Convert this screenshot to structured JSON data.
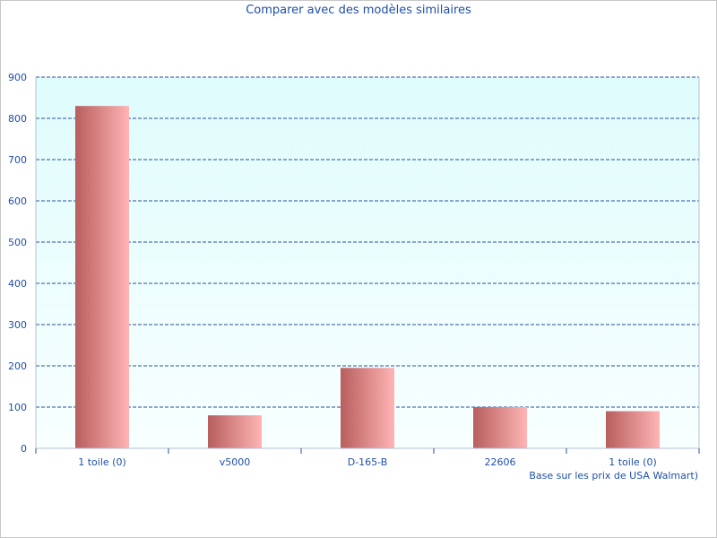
{
  "chart_data": {
    "type": "bar",
    "title": "Comparer avec des modèles similaires",
    "xlabel": "Base sur les prix de USA Walmart)",
    "ylabel": "",
    "categories": [
      "1 toile (0)",
      "v5000",
      "D-165-B",
      "22606",
      "1 toile (0)"
    ],
    "values": [
      830,
      80,
      195,
      100,
      90
    ],
    "ylim": [
      0,
      900
    ],
    "yticks": [
      0,
      100,
      200,
      300,
      400,
      500,
      600,
      700,
      800,
      900
    ],
    "grid": true,
    "legend": "none",
    "colors": {
      "bar_dark": "#b85e5e",
      "bar_light": "#ffb4b4",
      "plot_bg_top": "#dffcfc",
      "plot_bg_bottom": "#f8ffff",
      "grid": "#2a4f9a",
      "axis": "#b0c0d8",
      "text": "#1f4fa8"
    }
  }
}
